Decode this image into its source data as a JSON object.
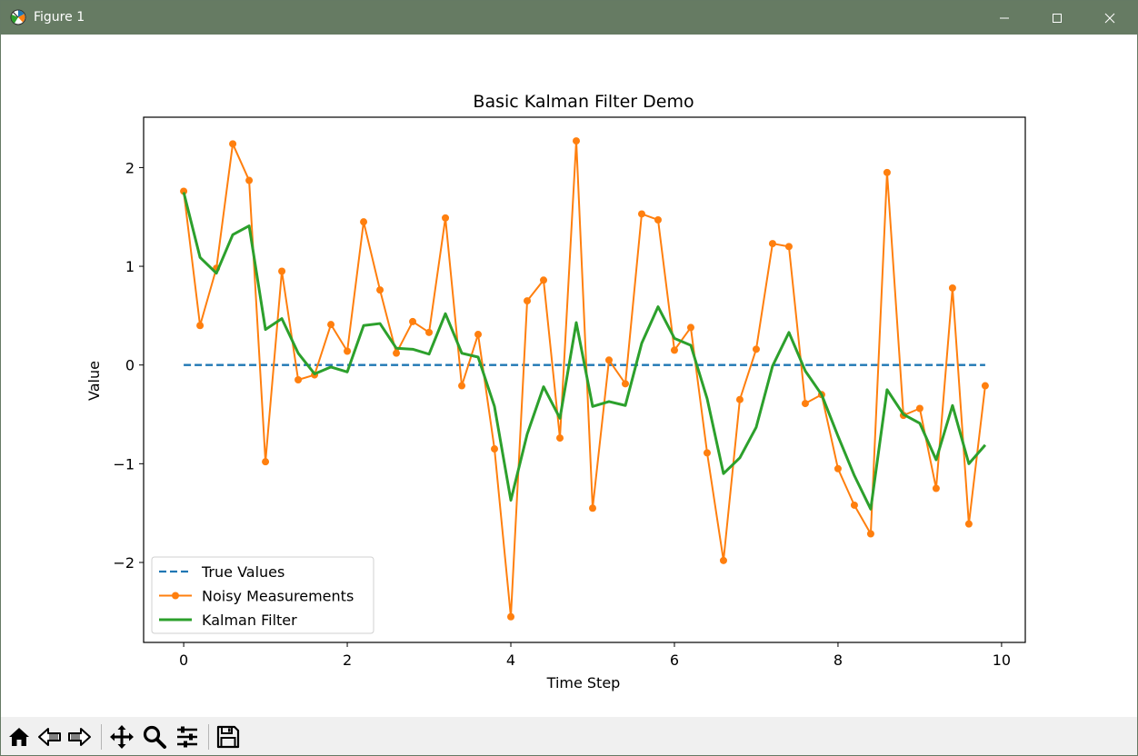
{
  "window": {
    "title": "Figure 1",
    "icon": "matplotlib-icon",
    "controls": [
      "minimize-icon",
      "maximize-icon",
      "close-icon"
    ],
    "titlebar_color": "#667b63"
  },
  "toolbar": {
    "buttons": [
      "home-icon",
      "back-icon",
      "forward-icon",
      "pan-icon",
      "zoom-icon",
      "configure-subplots-icon",
      "save-icon"
    ]
  },
  "chart_data": {
    "type": "line",
    "title": "Basic Kalman Filter Demo",
    "xlabel": "Time Step",
    "ylabel": "Value",
    "xlim": [
      -0.49,
      10.29
    ],
    "ylim": [
      -2.81,
      2.51
    ],
    "xticks": [
      0,
      2,
      4,
      6,
      8,
      10
    ],
    "xtick_labels": [
      "0",
      "2",
      "4",
      "6",
      "8",
      "10"
    ],
    "yticks": [
      -2,
      -1,
      0,
      1,
      2
    ],
    "ytick_labels": [
      "−2",
      "−1",
      "0",
      "1",
      "2"
    ],
    "grid": false,
    "legend_position": "lower-left",
    "x": [
      0,
      0.2,
      0.4,
      0.6,
      0.8,
      1.0,
      1.2,
      1.4,
      1.6,
      1.8,
      2.0,
      2.2,
      2.4,
      2.6,
      2.8,
      3.0,
      3.2,
      3.4,
      3.6,
      3.8,
      4.0,
      4.2,
      4.4,
      4.6,
      4.8,
      5.0,
      5.2,
      5.4,
      5.6,
      5.8,
      6.0,
      6.2,
      6.4,
      6.6,
      6.8,
      7.0,
      7.2,
      7.4,
      7.6,
      7.8,
      8.0,
      8.2,
      8.4,
      8.6,
      8.8,
      9.0,
      9.2,
      9.4,
      9.6,
      9.8
    ],
    "series": [
      {
        "name": "True Values",
        "style": "dashed",
        "color": "#1f77b4",
        "values": [
          0,
          0,
          0,
          0,
          0,
          0,
          0,
          0,
          0,
          0,
          0,
          0,
          0,
          0,
          0,
          0,
          0,
          0,
          0,
          0,
          0,
          0,
          0,
          0,
          0,
          0,
          0,
          0,
          0,
          0,
          0,
          0,
          0,
          0,
          0,
          0,
          0,
          0,
          0,
          0,
          0,
          0,
          0,
          0,
          0,
          0,
          0,
          0,
          0,
          0
        ]
      },
      {
        "name": "Noisy Measurements",
        "style": "solid-markers",
        "color": "#ff7f0e",
        "values": [
          1.76,
          0.4,
          0.98,
          2.24,
          1.87,
          -0.98,
          0.95,
          -0.15,
          -0.1,
          0.41,
          0.14,
          1.45,
          0.76,
          0.12,
          0.44,
          0.33,
          1.49,
          -0.21,
          0.31,
          -0.85,
          -2.55,
          0.65,
          0.86,
          -0.74,
          2.27,
          -1.45,
          0.05,
          -0.19,
          1.53,
          1.47,
          0.15,
          0.38,
          -0.89,
          -1.98,
          -0.35,
          0.16,
          1.23,
          1.2,
          -0.39,
          -0.3,
          -1.05,
          -1.42,
          -1.71,
          1.95,
          -0.51,
          -0.44,
          -1.25,
          0.78,
          -1.61,
          -0.21
        ]
      },
      {
        "name": "Kalman Filter",
        "style": "solid-thick",
        "color": "#2ca02c",
        "values": [
          1.75,
          1.09,
          0.93,
          1.32,
          1.41,
          0.36,
          0.47,
          0.12,
          -0.09,
          -0.02,
          -0.07,
          0.4,
          0.42,
          0.17,
          0.16,
          0.11,
          0.52,
          0.12,
          0.08,
          -0.42,
          -1.37,
          -0.7,
          -0.22,
          -0.54,
          0.43,
          -0.42,
          -0.37,
          -0.41,
          0.22,
          0.59,
          0.27,
          0.2,
          -0.34,
          -1.1,
          -0.94,
          -0.63,
          -0.01,
          0.33,
          -0.06,
          -0.3,
          -0.72,
          -1.12,
          -1.46,
          -0.25,
          -0.5,
          -0.59,
          -0.96,
          -0.41,
          -1.0,
          -0.81
        ]
      }
    ]
  }
}
